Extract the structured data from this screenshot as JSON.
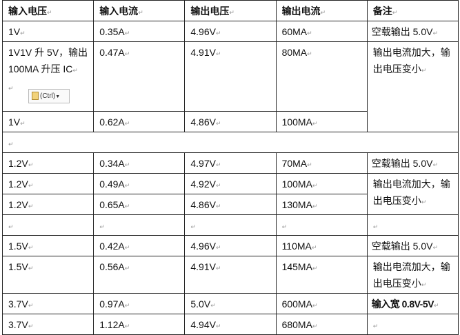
{
  "headers": [
    "输入电压",
    "输入电流",
    "输出电压",
    "输出电流",
    "备注"
  ],
  "rows": {
    "r1": [
      "1V",
      "0.35A",
      "4.96V",
      "60MA",
      "空载输出 5.0V"
    ],
    "r2": [
      "1V1V 升 5V，输出 100MA 升压 IC",
      "0.47A",
      "4.91V",
      "80MA",
      "输出电流加大，输出电压变小"
    ],
    "r3": [
      "1V",
      "0.62A",
      "4.86V",
      "100MA"
    ],
    "r5": [
      "1.2V",
      "0.34A",
      "4.97V",
      "70MA",
      "空载输出 5.0V"
    ],
    "r6": [
      "1.2V",
      "0.49A",
      "4.92V",
      "100MA",
      "输出电流加大，输出电压变小"
    ],
    "r7": [
      "1.2V",
      "0.65A",
      "4.86V",
      "130MA"
    ],
    "r9": [
      "1.5V",
      "0.42A",
      "4.96V",
      "110MA",
      "空载输出 5.0V"
    ],
    "r10": [
      "1.5V",
      "0.56A",
      "4.91V",
      "145MA",
      "输出电流加大，输出电压变小"
    ],
    "r11": [
      "3.7V",
      "0.97A",
      "5.0V",
      "600MA",
      "输入宽 0.8V-5V"
    ],
    "r12": [
      "3.7V",
      "1.12A",
      "4.94V",
      "680MA",
      ""
    ]
  },
  "paste_options": {
    "label": "(Ctrl)",
    "icon": "clipboard-icon"
  }
}
